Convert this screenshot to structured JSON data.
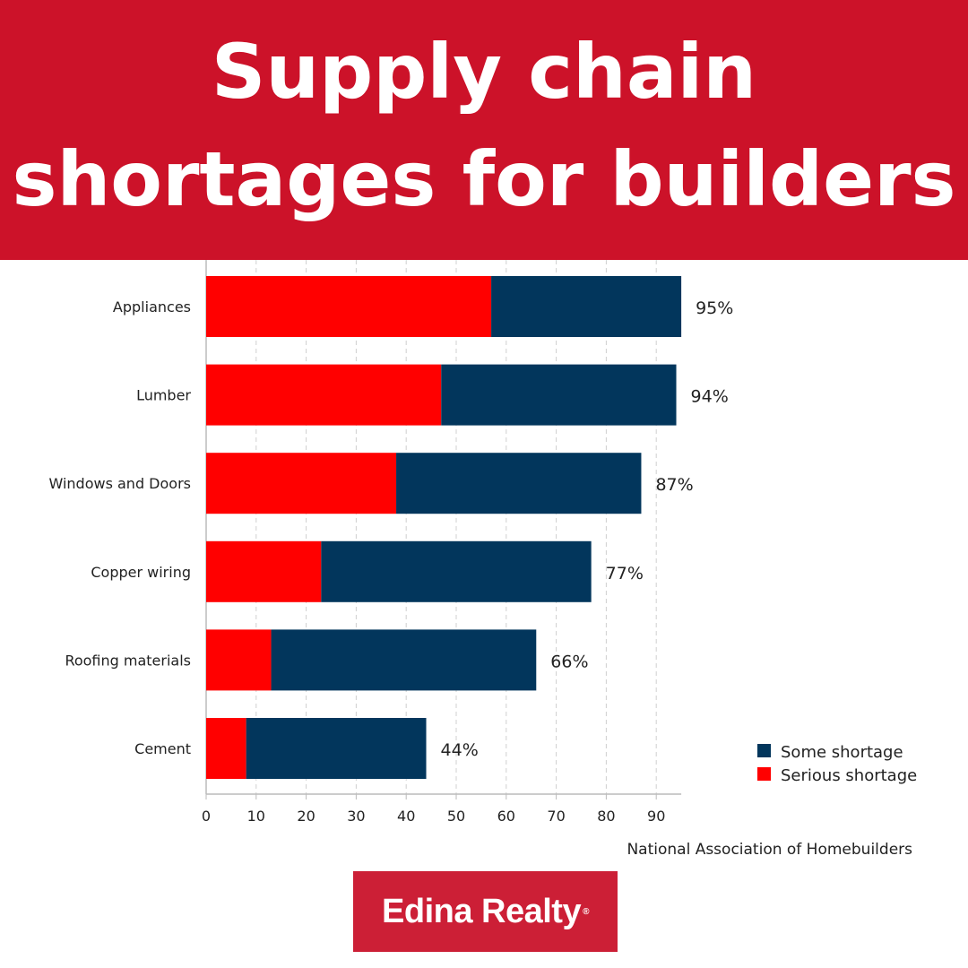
{
  "header": {
    "title_line1": "Supply chain",
    "title_line2": "shortages for builders"
  },
  "chart_data": {
    "type": "bar",
    "orientation": "horizontal",
    "stacked": true,
    "categories": [
      "Appliances",
      "Lumber",
      "Windows and Doors",
      "Copper wiring",
      "Roofing materials",
      "Cement"
    ],
    "series": [
      {
        "name": "Serious shortage",
        "color": "#ff0000",
        "values": [
          57,
          47,
          38,
          23,
          13,
          8
        ]
      },
      {
        "name": "Some shortage",
        "color": "#02365c",
        "values": [
          38,
          47,
          49,
          54,
          53,
          36
        ]
      }
    ],
    "totals": [
      95,
      94,
      87,
      77,
      66,
      44
    ],
    "total_labels": [
      "95%",
      "94%",
      "87%",
      "77%",
      "66%",
      "44%"
    ],
    "xticks": [
      0,
      10,
      20,
      30,
      40,
      50,
      60,
      70,
      80,
      90
    ],
    "xlim": [
      0,
      95
    ],
    "grid": "vertical dashed",
    "legend": {
      "placement": "bottom-right",
      "entries": [
        "Some shortage",
        "Serious shortage"
      ]
    },
    "source": "National Association of Homebuilders"
  },
  "footer": {
    "logo_text": "Edina Realty",
    "logo_mark": "®"
  }
}
